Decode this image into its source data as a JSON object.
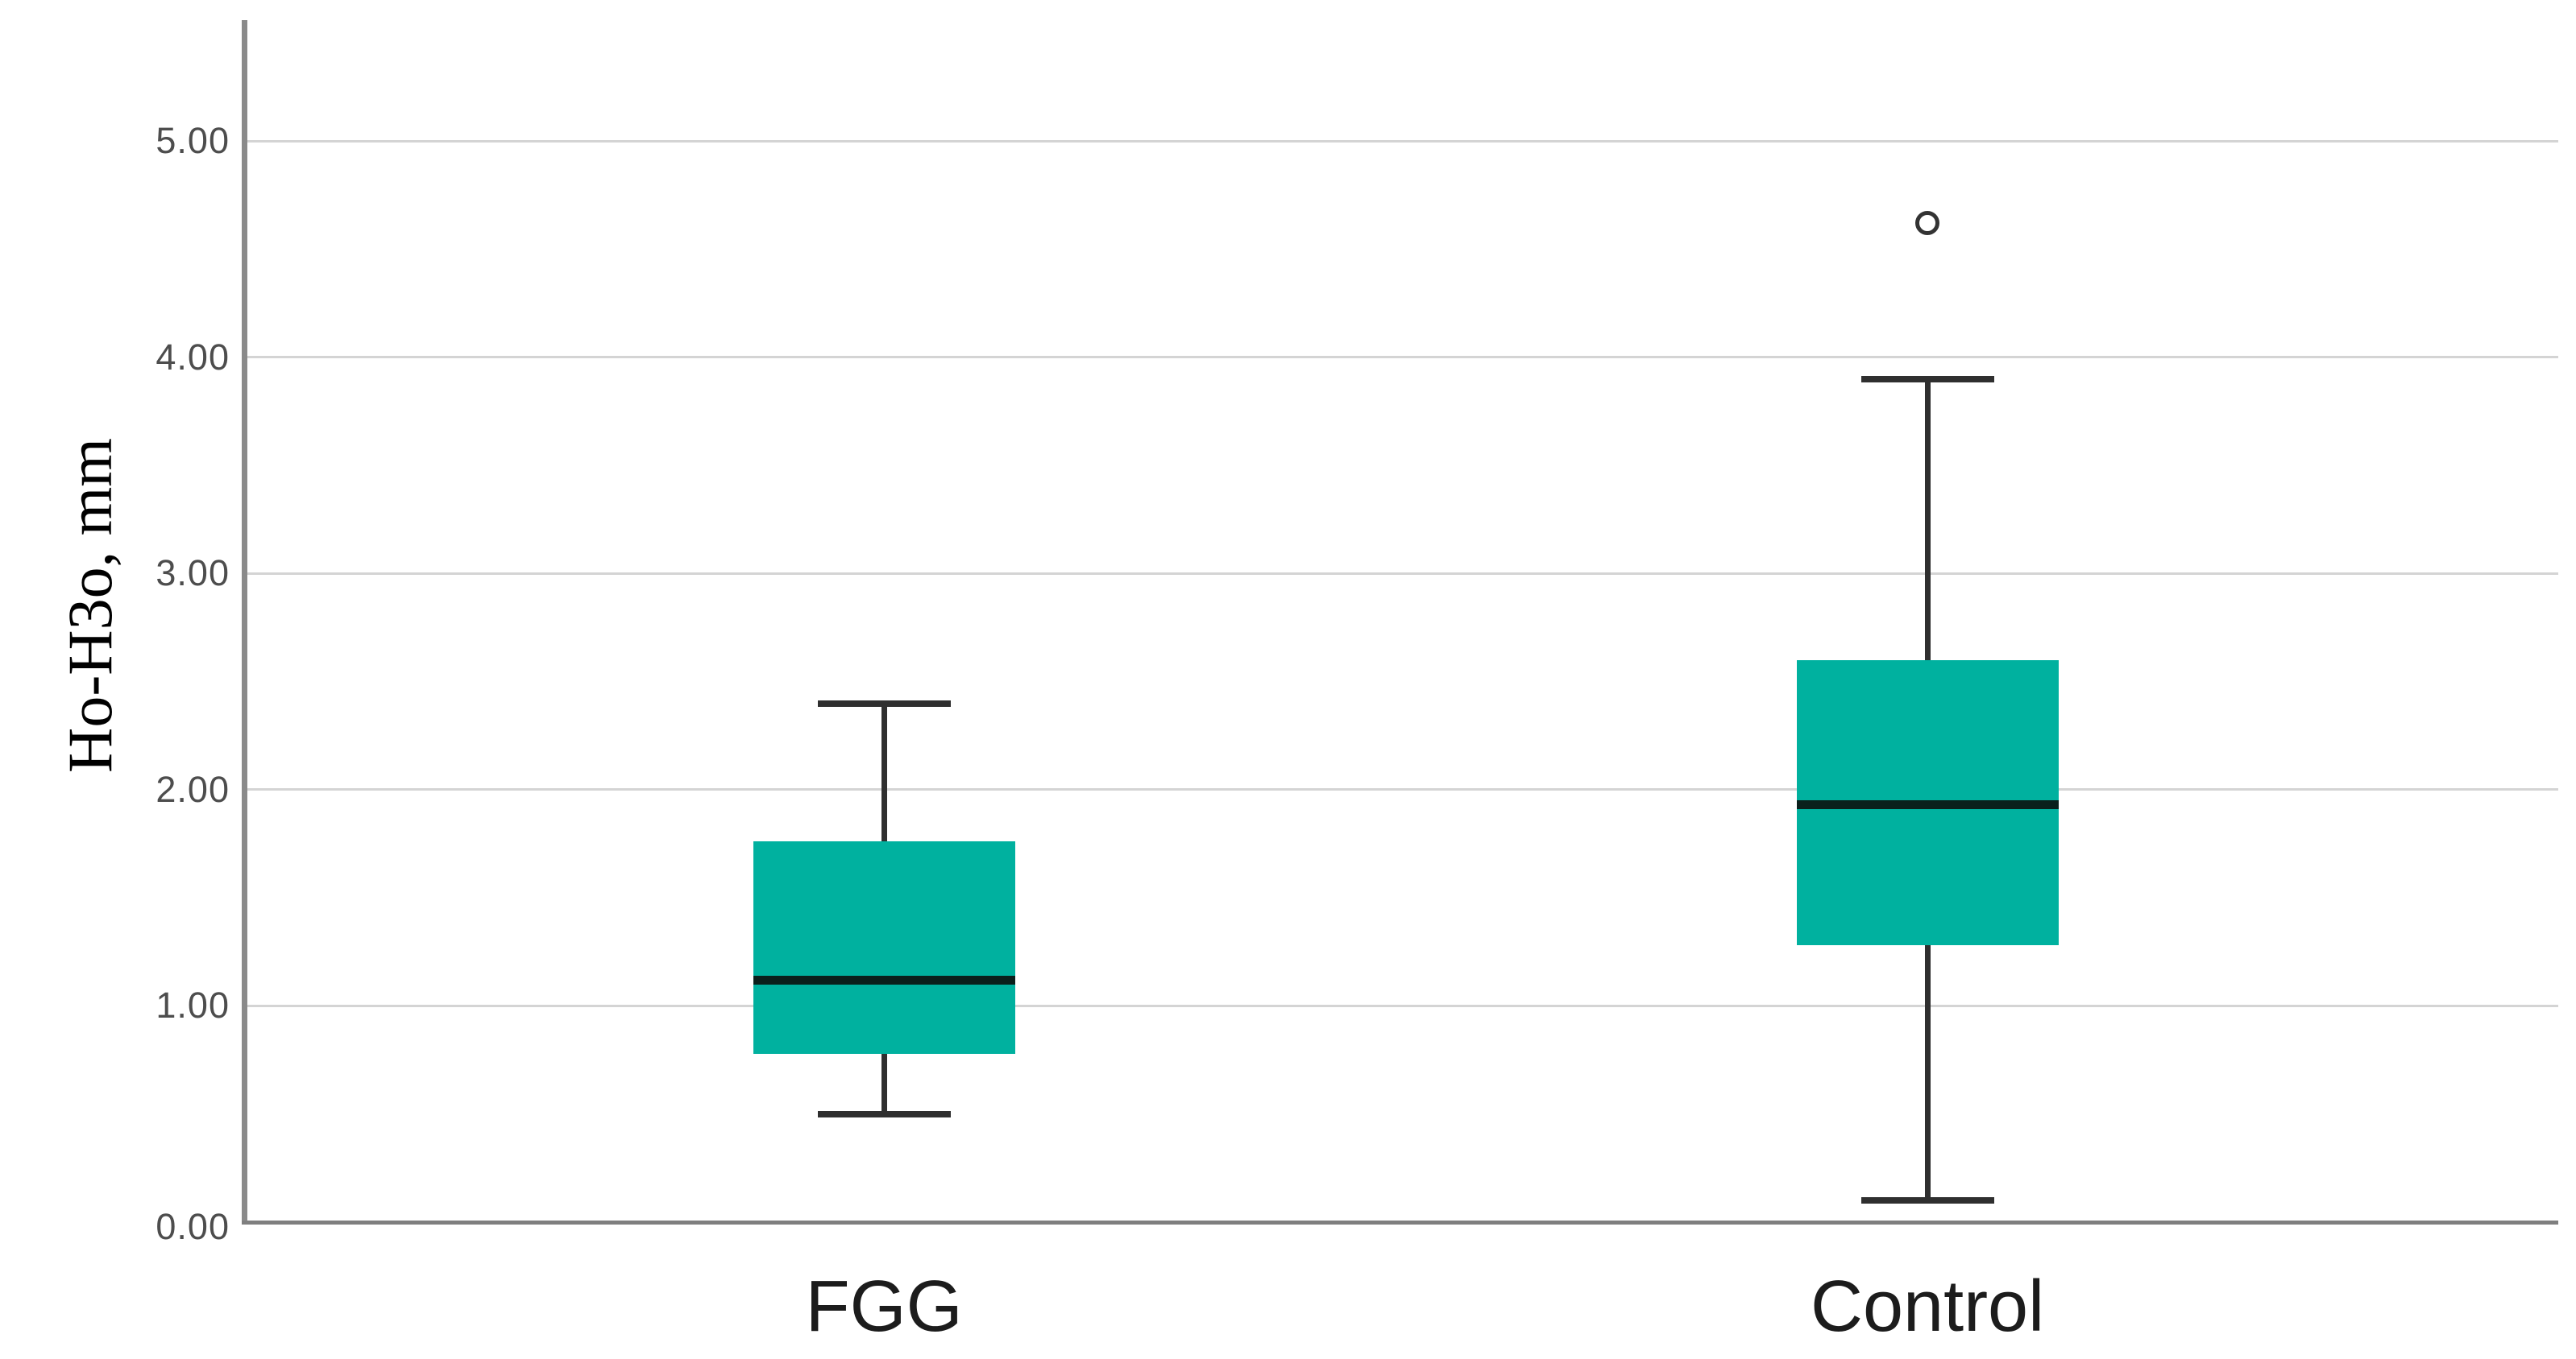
{
  "figure": {
    "background_color": "#ffffff"
  },
  "chart_data": {
    "type": "boxplot",
    "title": "",
    "xlabel": "",
    "ylabel": "Ho-H3o, mm",
    "categories": [
      "FGG",
      "Control"
    ],
    "y_ticks": [
      {
        "value": 0,
        "label": "0.00"
      },
      {
        "value": 1,
        "label": "1.00"
      },
      {
        "value": 2,
        "label": "2.00"
      },
      {
        "value": 3,
        "label": "3.00"
      },
      {
        "value": 4,
        "label": "4.00"
      },
      {
        "value": 5,
        "label": "5.00"
      }
    ],
    "ylim": [
      0,
      5.56
    ],
    "grid": "horizontal",
    "legend": "none",
    "series": [
      {
        "category": "FGG",
        "whisker_low": 0.5,
        "q1": 0.78,
        "median": 1.12,
        "q3": 1.76,
        "whisker_high": 2.4,
        "outliers": []
      },
      {
        "category": "Control",
        "whisker_low": 0.1,
        "q1": 1.28,
        "median": 1.93,
        "q3": 2.6,
        "whisker_high": 3.9,
        "outliers": [
          4.62
        ]
      }
    ],
    "colors": {
      "box_fill": "#00b19f",
      "median_line": "#0a201c",
      "whisker": "#2f2f2f",
      "outlier_stroke": "#333333",
      "y_axis_line": "#8a8a8a",
      "x_axis_line": "#7f7f7f",
      "gridline": "#d4d4d4",
      "tick_label": "#4d4d4d",
      "category_label": "#1c1c1c",
      "y_title": "#000000"
    }
  }
}
